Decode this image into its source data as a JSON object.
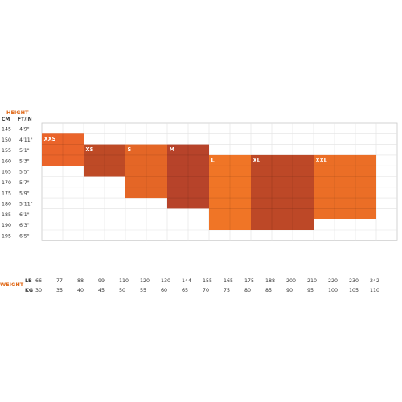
{
  "chart_data": {
    "type": "heatmap",
    "height_label": "HEIGHT",
    "height_cm_header": "CM",
    "height_ftin_header": "FT/IN",
    "weight_label": "WEIGHT",
    "weight_lb_header": "LB",
    "weight_kg_header": "KG",
    "height_cm": [
      "145",
      "150",
      "155",
      "160",
      "165",
      "170",
      "175",
      "180",
      "185",
      "190",
      "195"
    ],
    "height_ftin": [
      "4'9\"",
      "4'11\"",
      "5'1\"",
      "5'3\"",
      "5'5\"",
      "5'7\"",
      "5'9\"",
      "5'11\"",
      "6'1\"",
      "6'3\"",
      "6'5\""
    ],
    "weight_lb": [
      "66",
      "77",
      "88",
      "99",
      "110",
      "120",
      "130",
      "144",
      "155",
      "165",
      "175",
      "188",
      "200",
      "210",
      "220",
      "230",
      "242"
    ],
    "weight_kg": [
      "30",
      "35",
      "40",
      "45",
      "50",
      "55",
      "60",
      "65",
      "70",
      "75",
      "80",
      "85",
      "90",
      "95",
      "100",
      "105",
      "110"
    ],
    "sizes": [
      {
        "label": "XXS",
        "weight_kg": [
          30,
          40
        ],
        "height_cm": [
          150,
          165
        ],
        "color": "#e8581a"
      },
      {
        "label": "XS",
        "weight_kg": [
          40,
          50
        ],
        "height_cm": [
          155,
          170
        ],
        "color": "#b93c16"
      },
      {
        "label": "S",
        "weight_kg": [
          50,
          60
        ],
        "height_cm": [
          155,
          180
        ],
        "color": "#e25a16"
      },
      {
        "label": "M",
        "weight_kg": [
          60,
          70
        ],
        "height_cm": [
          155,
          185
        ],
        "color": "#b2351a"
      },
      {
        "label": "L",
        "weight_kg": [
          70,
          80
        ],
        "height_cm": [
          160,
          195
        ],
        "color": "#ef6a16"
      },
      {
        "label": "XL",
        "weight_kg": [
          80,
          95
        ],
        "height_cm": [
          160,
          195
        ],
        "color": "#b83a17"
      },
      {
        "label": "XXL",
        "weight_kg": [
          95,
          110
        ],
        "height_cm": [
          160,
          190
        ],
        "color": "#ea6316"
      }
    ]
  }
}
